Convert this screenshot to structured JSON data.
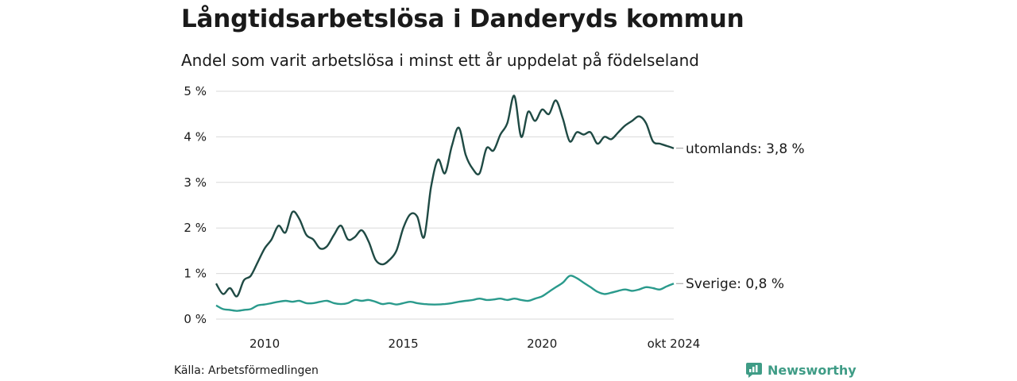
{
  "header": {
    "title": "Långtidsarbetslösa i Danderyds kommun",
    "subtitle": "Andel som varit arbetslösa i minst ett år uppdelat på födelseland"
  },
  "footer": {
    "source": "Källa: Arbetsförmedlingen",
    "brand": "Newsworthy"
  },
  "colors": {
    "utomlands": "#1f4a44",
    "sverige": "#2a9a8c",
    "grid": "#d9d9d9",
    "brand": "#3f9c86"
  },
  "chart_data": {
    "type": "line",
    "title": "Långtidsarbetslösa i Danderyds kommun",
    "subtitle": "Andel som varit arbetslösa i minst ett år uppdelat på födelseland",
    "xlabel": "",
    "ylabel": "",
    "x_range": [
      2008.25,
      2024.75
    ],
    "ylim": [
      0,
      5
    ],
    "y_ticks": [
      0,
      1,
      2,
      3,
      4,
      5
    ],
    "y_tick_labels": [
      "0 %",
      "1 %",
      "2 %",
      "3 %",
      "4 %",
      "5 %"
    ],
    "x_ticks": [
      2010,
      2015,
      2020,
      2024.75
    ],
    "x_tick_labels": [
      "2010",
      "2015",
      "2020",
      "okt 2024"
    ],
    "grid": true,
    "legend": "end-of-line labels",
    "series": [
      {
        "name": "utomlands",
        "end_label": "utomlands: 3,8 %",
        "x": [
          2008.25,
          2008.5,
          2008.75,
          2009.0,
          2009.25,
          2009.5,
          2009.75,
          2010.0,
          2010.25,
          2010.5,
          2010.75,
          2011.0,
          2011.25,
          2011.5,
          2011.75,
          2012.0,
          2012.25,
          2012.5,
          2012.75,
          2013.0,
          2013.25,
          2013.5,
          2013.75,
          2014.0,
          2014.25,
          2014.5,
          2014.75,
          2015.0,
          2015.25,
          2015.5,
          2015.75,
          2016.0,
          2016.25,
          2016.5,
          2016.75,
          2017.0,
          2017.25,
          2017.5,
          2017.75,
          2018.0,
          2018.25,
          2018.5,
          2018.75,
          2019.0,
          2019.25,
          2019.5,
          2019.75,
          2020.0,
          2020.25,
          2020.5,
          2020.75,
          2021.0,
          2021.25,
          2021.5,
          2021.75,
          2022.0,
          2022.25,
          2022.5,
          2022.75,
          2023.0,
          2023.25,
          2023.5,
          2023.75,
          2024.0,
          2024.25,
          2024.5,
          2024.75
        ],
        "values": [
          0.78,
          0.55,
          0.68,
          0.5,
          0.85,
          0.95,
          1.25,
          1.55,
          1.75,
          2.05,
          1.9,
          2.35,
          2.2,
          1.85,
          1.75,
          1.55,
          1.6,
          1.85,
          2.05,
          1.75,
          1.8,
          1.95,
          1.7,
          1.3,
          1.2,
          1.3,
          1.5,
          2.0,
          2.3,
          2.25,
          1.8,
          2.9,
          3.5,
          3.2,
          3.8,
          4.2,
          3.6,
          3.3,
          3.2,
          3.75,
          3.7,
          4.05,
          4.3,
          4.9,
          4.0,
          4.55,
          4.35,
          4.6,
          4.5,
          4.8,
          4.4,
          3.9,
          4.1,
          4.05,
          4.1,
          3.85,
          4.0,
          3.95,
          4.1,
          4.25,
          4.35,
          4.45,
          4.3,
          3.9,
          3.85,
          3.8,
          3.75
        ]
      },
      {
        "name": "Sverige",
        "end_label": "Sverige: 0,8 %",
        "x": [
          2008.25,
          2008.5,
          2008.75,
          2009.0,
          2009.25,
          2009.5,
          2009.75,
          2010.0,
          2010.25,
          2010.5,
          2010.75,
          2011.0,
          2011.25,
          2011.5,
          2011.75,
          2012.0,
          2012.25,
          2012.5,
          2012.75,
          2013.0,
          2013.25,
          2013.5,
          2013.75,
          2014.0,
          2014.25,
          2014.5,
          2014.75,
          2015.0,
          2015.25,
          2015.5,
          2015.75,
          2016.0,
          2016.25,
          2016.5,
          2016.75,
          2017.0,
          2017.25,
          2017.5,
          2017.75,
          2018.0,
          2018.25,
          2018.5,
          2018.75,
          2019.0,
          2019.25,
          2019.5,
          2019.75,
          2020.0,
          2020.25,
          2020.5,
          2020.75,
          2021.0,
          2021.25,
          2021.5,
          2021.75,
          2022.0,
          2022.25,
          2022.5,
          2022.75,
          2023.0,
          2023.25,
          2023.5,
          2023.75,
          2024.0,
          2024.25,
          2024.5,
          2024.75
        ],
        "values": [
          0.3,
          0.22,
          0.2,
          0.18,
          0.2,
          0.22,
          0.3,
          0.32,
          0.35,
          0.38,
          0.4,
          0.38,
          0.4,
          0.35,
          0.35,
          0.38,
          0.4,
          0.35,
          0.33,
          0.35,
          0.42,
          0.4,
          0.42,
          0.38,
          0.33,
          0.35,
          0.32,
          0.35,
          0.38,
          0.35,
          0.33,
          0.32,
          0.32,
          0.33,
          0.35,
          0.38,
          0.4,
          0.42,
          0.45,
          0.42,
          0.43,
          0.45,
          0.42,
          0.45,
          0.42,
          0.4,
          0.45,
          0.5,
          0.6,
          0.7,
          0.8,
          0.95,
          0.9,
          0.8,
          0.7,
          0.6,
          0.55,
          0.58,
          0.62,
          0.65,
          0.62,
          0.65,
          0.7,
          0.68,
          0.65,
          0.72,
          0.78
        ]
      }
    ]
  }
}
